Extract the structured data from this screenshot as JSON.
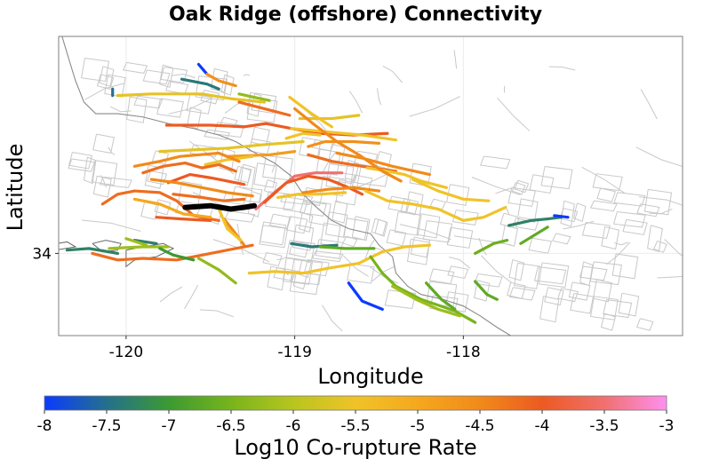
{
  "chart_data": {
    "type": "map",
    "title": "Oak Ridge (offshore) Connectivity",
    "xlabel": "Longitude",
    "ylabel": "Latitude",
    "xlim": [
      -120.4,
      -116.7
    ],
    "ylim": [
      33.5,
      35.32
    ],
    "x_ticks": [
      -120,
      -119,
      -118
    ],
    "x_tick_labels": [
      "-120",
      "-119",
      "-118"
    ],
    "y_ticks": [
      34
    ],
    "y_tick_labels": [
      "34"
    ],
    "grid": true,
    "highlighted_fault": {
      "name": "Oak Ridge (offshore)",
      "color": "#000000",
      "points": [
        [
          -119.65,
          34.28
        ],
        [
          -119.5,
          34.29
        ],
        [
          -119.38,
          34.27
        ],
        [
          -119.3,
          34.28
        ],
        [
          -119.24,
          34.29
        ]
      ]
    },
    "colorbar": {
      "label": "Log10 Co-rupture Rate",
      "range": [
        -8,
        -3
      ],
      "ticks": [
        -8,
        -7.5,
        -7,
        -6.5,
        -6,
        -5.5,
        -5,
        -4.5,
        -4,
        -3.5,
        -3
      ],
      "tick_labels": [
        "-8",
        "-7.5",
        "-7",
        "-6.5",
        "-6",
        "-5.5",
        "-5",
        "-4.5",
        "-4",
        "-3.5",
        "-3"
      ],
      "colormap": [
        {
          "v": -8,
          "color": "#0a3bff"
        },
        {
          "v": -7.5,
          "color": "#24708c"
        },
        {
          "v": -7,
          "color": "#3c9a32"
        },
        {
          "v": -6.5,
          "color": "#78b41c"
        },
        {
          "v": -6,
          "color": "#b8c51e"
        },
        {
          "v": -5.5,
          "color": "#f0c328"
        },
        {
          "v": -5,
          "color": "#f5a81e"
        },
        {
          "v": -4.5,
          "color": "#f18a1a"
        },
        {
          "v": -4,
          "color": "#ec5a22"
        },
        {
          "v": -3.5,
          "color": "#f07070"
        },
        {
          "v": -3,
          "color": "#ff90f0"
        }
      ]
    },
    "connected_faults": [
      {
        "rate": -8.0,
        "points": [
          [
            -119.57,
            35.15
          ],
          [
            -119.52,
            35.09
          ]
        ]
      },
      {
        "rate": -7.5,
        "points": [
          [
            -120.08,
            35.0
          ],
          [
            -120.08,
            34.96
          ]
        ]
      },
      {
        "rate": -7.4,
        "points": [
          [
            -119.67,
            35.06
          ],
          [
            -119.52,
            35.03
          ],
          [
            -119.45,
            35.0
          ]
        ]
      },
      {
        "rate": -4.6,
        "points": [
          [
            -119.52,
            35.09
          ],
          [
            -119.45,
            35.05
          ],
          [
            -119.35,
            35.02
          ]
        ]
      },
      {
        "rate": -6.3,
        "points": [
          [
            -119.33,
            34.97
          ],
          [
            -119.24,
            34.95
          ],
          [
            -119.15,
            34.93
          ]
        ]
      },
      {
        "rate": -5.6,
        "points": [
          [
            -120.05,
            34.96
          ],
          [
            -119.85,
            34.97
          ],
          [
            -119.55,
            34.97
          ],
          [
            -119.37,
            34.94
          ],
          [
            -119.18,
            34.92
          ]
        ]
      },
      {
        "rate": -4.2,
        "points": [
          [
            -119.33,
            34.92
          ],
          [
            -119.18,
            34.88
          ],
          [
            -119.03,
            34.84
          ]
        ]
      },
      {
        "rate": -4.0,
        "points": [
          [
            -119.76,
            34.78
          ],
          [
            -119.5,
            34.78
          ],
          [
            -119.3,
            34.77
          ],
          [
            -119.17,
            34.79
          ],
          [
            -119.02,
            34.76
          ],
          [
            -118.85,
            34.73
          ],
          [
            -118.65,
            34.72
          ],
          [
            -118.45,
            34.73
          ]
        ]
      },
      {
        "rate": -5.6,
        "points": [
          [
            -118.97,
            34.82
          ],
          [
            -118.78,
            34.82
          ],
          [
            -118.62,
            34.84
          ]
        ]
      },
      {
        "rate": -5.5,
        "points": [
          [
            -119.02,
            34.76
          ],
          [
            -118.82,
            34.74
          ],
          [
            -118.6,
            34.72
          ],
          [
            -118.4,
            34.69
          ]
        ]
      },
      {
        "rate": -4.6,
        "points": [
          [
            -118.92,
            34.65
          ],
          [
            -118.82,
            34.68
          ],
          [
            -118.65,
            34.68
          ],
          [
            -118.5,
            34.67
          ]
        ]
      },
      {
        "rate": -5.6,
        "points": [
          [
            -119.8,
            34.62
          ],
          [
            -119.6,
            34.63
          ],
          [
            -119.4,
            34.64
          ],
          [
            -119.2,
            34.66
          ],
          [
            -118.95,
            34.68
          ]
        ]
      },
      {
        "rate": -4.8,
        "points": [
          [
            -119.4,
            34.59
          ],
          [
            -119.15,
            34.6
          ],
          [
            -119.0,
            34.62
          ]
        ]
      },
      {
        "rate": -4.2,
        "points": [
          [
            -118.92,
            34.6
          ],
          [
            -118.78,
            34.56
          ],
          [
            -118.6,
            34.53
          ],
          [
            -118.4,
            34.5
          ]
        ]
      },
      {
        "rate": -4.5,
        "points": [
          [
            -118.75,
            34.61
          ],
          [
            -118.6,
            34.58
          ],
          [
            -118.42,
            34.53
          ],
          [
            -118.2,
            34.48
          ]
        ]
      },
      {
        "rate": -5.5,
        "points": [
          [
            -118.57,
            34.52
          ],
          [
            -118.45,
            34.5
          ],
          [
            -118.35,
            34.48
          ],
          [
            -118.25,
            34.44
          ],
          [
            -118.1,
            34.4
          ]
        ]
      },
      {
        "rate": -4.5,
        "points": [
          [
            -119.0,
            34.88
          ],
          [
            -118.88,
            34.78
          ],
          [
            -118.75,
            34.68
          ],
          [
            -118.62,
            34.6
          ],
          [
            -118.48,
            34.5
          ],
          [
            -118.37,
            34.44
          ]
        ]
      },
      {
        "rate": -5.5,
        "points": [
          [
            -119.03,
            34.95
          ],
          [
            -118.9,
            34.85
          ],
          [
            -118.78,
            34.77
          ]
        ]
      },
      {
        "rate": -5.5,
        "points": [
          [
            -119.05,
            34.7
          ],
          [
            -118.95,
            34.73
          ],
          [
            -118.85,
            34.72
          ]
        ]
      },
      {
        "rate": -5.5,
        "points": [
          [
            -119.53,
            34.54
          ],
          [
            -119.4,
            34.57
          ],
          [
            -119.25,
            34.59
          ]
        ]
      },
      {
        "rate": -4.5,
        "points": [
          [
            -119.95,
            34.53
          ],
          [
            -119.8,
            34.56
          ],
          [
            -119.68,
            34.59
          ],
          [
            -119.45,
            34.61
          ],
          [
            -119.33,
            34.56
          ]
        ]
      },
      {
        "rate": -4.2,
        "points": [
          [
            -119.9,
            34.49
          ],
          [
            -119.78,
            34.53
          ],
          [
            -119.65,
            34.55
          ],
          [
            -119.55,
            34.52
          ],
          [
            -119.45,
            34.54
          ],
          [
            -119.35,
            34.5
          ]
        ]
      },
      {
        "rate": -4.0,
        "points": [
          [
            -119.75,
            34.43
          ],
          [
            -119.62,
            34.48
          ],
          [
            -119.5,
            34.46
          ],
          [
            -119.4,
            34.44
          ],
          [
            -119.3,
            34.42
          ]
        ]
      },
      {
        "rate": -4.5,
        "points": [
          [
            -119.85,
            34.45
          ],
          [
            -119.7,
            34.43
          ],
          [
            -119.55,
            34.4
          ],
          [
            -119.4,
            34.37
          ],
          [
            -119.25,
            34.35
          ]
        ]
      },
      {
        "rate": -4.2,
        "points": [
          [
            -119.72,
            34.36
          ],
          [
            -119.55,
            34.34
          ],
          [
            -119.42,
            34.32
          ],
          [
            -119.3,
            34.33
          ]
        ]
      },
      {
        "rate": -4.2,
        "points": [
          [
            -120.14,
            34.3
          ],
          [
            -120.05,
            34.36
          ],
          [
            -119.95,
            34.38
          ],
          [
            -119.8,
            34.37
          ],
          [
            -119.7,
            34.32
          ],
          [
            -119.6,
            34.23
          ],
          [
            -119.45,
            34.2
          ]
        ]
      },
      {
        "rate": -5.0,
        "points": [
          [
            -119.95,
            34.33
          ],
          [
            -119.8,
            34.3
          ],
          [
            -119.66,
            34.24
          ],
          [
            -119.5,
            34.22
          ]
        ]
      },
      {
        "rate": -4.0,
        "points": [
          [
            -119.82,
            34.22
          ],
          [
            -119.68,
            34.21
          ],
          [
            -119.5,
            34.2
          ]
        ]
      },
      {
        "rate": -4.5,
        "points": [
          [
            -119.42,
            34.21
          ],
          [
            -119.35,
            34.12
          ],
          [
            -119.3,
            34.05
          ]
        ]
      },
      {
        "rate": -5.5,
        "points": [
          [
            -119.45,
            34.27
          ],
          [
            -119.4,
            34.15
          ],
          [
            -119.32,
            34.08
          ]
        ]
      },
      {
        "rate": -3.5,
        "points": [
          [
            -119.23,
            34.27
          ],
          [
            -119.12,
            34.37
          ],
          [
            -119.0,
            34.47
          ],
          [
            -118.88,
            34.49
          ],
          [
            -118.72,
            34.49
          ]
        ]
      },
      {
        "rate": -4.0,
        "points": [
          [
            -119.18,
            34.31
          ],
          [
            -119.05,
            34.43
          ],
          [
            -118.92,
            34.47
          ],
          [
            -118.8,
            34.45
          ],
          [
            -118.68,
            34.4
          ],
          [
            -118.6,
            34.36
          ]
        ]
      },
      {
        "rate": -5.5,
        "points": [
          [
            -119.1,
            34.34
          ],
          [
            -118.98,
            34.36
          ],
          [
            -118.85,
            34.36
          ],
          [
            -118.7,
            34.37
          ]
        ]
      },
      {
        "rate": -4.5,
        "points": [
          [
            -118.95,
            34.37
          ],
          [
            -118.8,
            34.39
          ],
          [
            -118.65,
            34.4
          ],
          [
            -118.5,
            34.38
          ]
        ]
      },
      {
        "rate": -5.5,
        "points": [
          [
            -118.58,
            34.38
          ],
          [
            -118.45,
            34.32
          ],
          [
            -118.3,
            34.3
          ],
          [
            -118.15,
            34.27
          ],
          [
            -118.0,
            34.2
          ],
          [
            -117.88,
            34.22
          ],
          [
            -117.75,
            34.28
          ]
        ]
      },
      {
        "rate": -5.5,
        "points": [
          [
            -118.3,
            34.45
          ],
          [
            -118.15,
            34.38
          ],
          [
            -118.0,
            34.33
          ],
          [
            -117.85,
            34.32
          ]
        ]
      },
      {
        "rate": -7.3,
        "points": [
          [
            -117.73,
            34.17
          ],
          [
            -117.6,
            34.2
          ],
          [
            -117.5,
            34.21
          ],
          [
            -117.42,
            34.22
          ]
        ]
      },
      {
        "rate": -8.0,
        "points": [
          [
            -117.46,
            34.23
          ],
          [
            -117.38,
            34.22
          ]
        ]
      },
      {
        "rate": -6.7,
        "points": [
          [
            -117.66,
            34.06
          ],
          [
            -117.5,
            34.16
          ]
        ]
      },
      {
        "rate": -6.6,
        "points": [
          [
            -117.93,
            34.0
          ],
          [
            -117.82,
            34.06
          ],
          [
            -117.74,
            34.08
          ]
        ]
      },
      {
        "rate": -7.4,
        "points": [
          [
            -119.02,
            34.06
          ],
          [
            -118.9,
            34.04
          ],
          [
            -118.75,
            34.05
          ]
        ]
      },
      {
        "rate": -6.7,
        "points": [
          [
            -118.85,
            34.04
          ],
          [
            -118.7,
            34.03
          ],
          [
            -118.53,
            34.03
          ]
        ]
      },
      {
        "rate": -5.5,
        "points": [
          [
            -119.27,
            33.88
          ],
          [
            -119.12,
            33.89
          ],
          [
            -118.95,
            33.88
          ],
          [
            -118.8,
            33.91
          ],
          [
            -118.62,
            33.94
          ],
          [
            -118.48,
            34.01
          ],
          [
            -118.35,
            34.04
          ],
          [
            -118.2,
            34.05
          ]
        ]
      },
      {
        "rate": -6.5,
        "points": [
          [
            -118.55,
            33.98
          ],
          [
            -118.48,
            33.88
          ],
          [
            -118.4,
            33.8
          ],
          [
            -118.25,
            33.72
          ],
          [
            -118.05,
            33.65
          ],
          [
            -117.93,
            33.58
          ]
        ]
      },
      {
        "rate": -6.2,
        "points": [
          [
            -118.42,
            33.8
          ],
          [
            -118.28,
            33.72
          ],
          [
            -118.15,
            33.66
          ],
          [
            -118.02,
            33.62
          ]
        ]
      },
      {
        "rate": -8.0,
        "points": [
          [
            -118.68,
            33.82
          ],
          [
            -118.6,
            33.71
          ],
          [
            -118.48,
            33.66
          ]
        ]
      },
      {
        "rate": -6.7,
        "points": [
          [
            -118.22,
            33.82
          ],
          [
            -118.13,
            33.72
          ],
          [
            -118.05,
            33.66
          ]
        ]
      },
      {
        "rate": -6.7,
        "points": [
          [
            -117.93,
            33.83
          ],
          [
            -117.86,
            33.75
          ],
          [
            -117.8,
            33.72
          ]
        ]
      },
      {
        "rate": -7.3,
        "points": [
          [
            -120.35,
            34.02
          ],
          [
            -120.22,
            34.03
          ],
          [
            -120.05,
            34.0
          ]
        ]
      },
      {
        "rate": -6.2,
        "points": [
          [
            -120.1,
            34.03
          ],
          [
            -119.9,
            34.04
          ],
          [
            -119.75,
            34.04
          ]
        ]
      },
      {
        "rate": -7.3,
        "points": [
          [
            -119.95,
            34.08
          ],
          [
            -119.82,
            34.06
          ]
        ]
      },
      {
        "rate": -4.2,
        "points": [
          [
            -120.2,
            34.0
          ],
          [
            -120.05,
            33.96
          ],
          [
            -119.9,
            33.97
          ],
          [
            -119.7,
            33.96
          ],
          [
            -119.55,
            33.99
          ],
          [
            -119.4,
            34.02
          ],
          [
            -119.25,
            34.05
          ]
        ]
      },
      {
        "rate": -7.0,
        "points": [
          [
            -119.8,
            34.03
          ],
          [
            -119.72,
            33.99
          ],
          [
            -119.6,
            33.96
          ]
        ]
      },
      {
        "rate": -6.3,
        "points": [
          [
            -119.57,
            33.97
          ],
          [
            -119.45,
            33.9
          ],
          [
            -119.35,
            33.82
          ]
        ]
      },
      {
        "rate": -6.2,
        "points": [
          [
            -120.0,
            34.09
          ],
          [
            -119.88,
            34.05
          ]
        ]
      }
    ]
  }
}
